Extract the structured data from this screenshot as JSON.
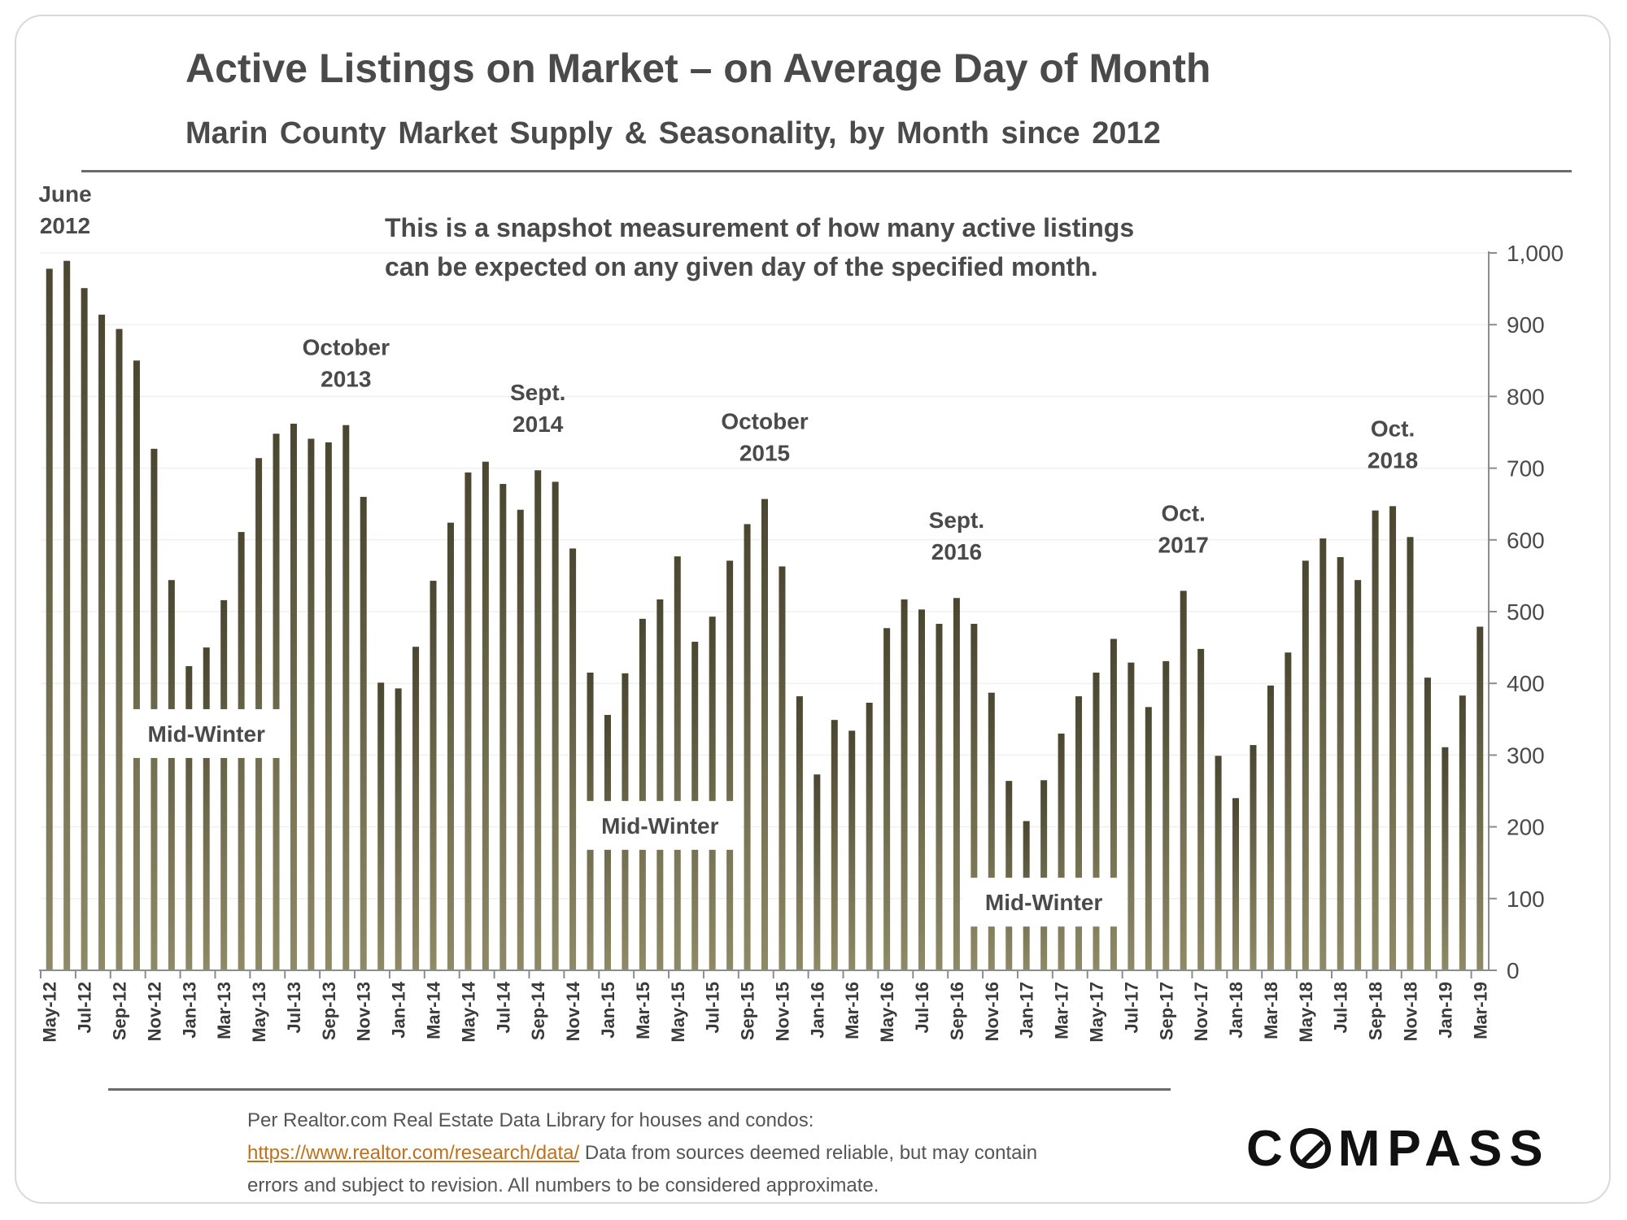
{
  "title": "Active Listings on Market – on Average Day of Month",
  "subtitle": "Marin County Market Supply & Seasonality, by Month since 2012",
  "note": {
    "line1": "This is a snapshot measurement of how many active listings",
    "line2": "can be expected on any given day of the specified month."
  },
  "source": {
    "line1": "Per Realtor.com Real Estate Data Library for houses and condos:",
    "link": "https://www.realtor.com/research/data/",
    "line2_rest": " Data from sources deemed reliable, but may contain",
    "line3": "errors and subject to revision. All numbers to be considered approximate."
  },
  "logo": {
    "text": "COMPASS"
  },
  "colors": {
    "bar_top": "#4a4630",
    "bar_bottom": "#8e8a66",
    "text": "#4a4a4a",
    "link": "#c0701a"
  },
  "chart_data": {
    "type": "bar",
    "title": "Active Listings on Market – on Average Day of Month",
    "subtitle": "Marin County Market Supply & Seasonality, by Month since 2012",
    "y_axis_position": "right",
    "ylim": [
      0,
      1000
    ],
    "yticks": [
      0,
      100,
      200,
      300,
      400,
      500,
      600,
      700,
      800,
      900,
      1000
    ],
    "ytick_labels": [
      "0",
      "100",
      "200",
      "300",
      "400",
      "500",
      "600",
      "700",
      "800",
      "900",
      "1,000"
    ],
    "grid": true,
    "categories": [
      "May-12",
      "Jun-12",
      "Jul-12",
      "Aug-12",
      "Sep-12",
      "Oct-12",
      "Nov-12",
      "Dec-12",
      "Jan-13",
      "Feb-13",
      "Mar-13",
      "Apr-13",
      "May-13",
      "Jun-13",
      "Jul-13",
      "Aug-13",
      "Sep-13",
      "Oct-13",
      "Nov-13",
      "Dec-13",
      "Jan-14",
      "Feb-14",
      "Mar-14",
      "Apr-14",
      "May-14",
      "Jun-14",
      "Jul-14",
      "Aug-14",
      "Sep-14",
      "Oct-14",
      "Nov-14",
      "Dec-14",
      "Jan-15",
      "Feb-15",
      "Mar-15",
      "Apr-15",
      "May-15",
      "Jun-15",
      "Jul-15",
      "Aug-15",
      "Sep-15",
      "Oct-15",
      "Nov-15",
      "Dec-15",
      "Jan-16",
      "Feb-16",
      "Mar-16",
      "Apr-16",
      "May-16",
      "Jun-16",
      "Jul-16",
      "Aug-16",
      "Sep-16",
      "Oct-16",
      "Nov-16",
      "Dec-16",
      "Jan-17",
      "Feb-17",
      "Mar-17",
      "Apr-17",
      "May-17",
      "Jun-17",
      "Jul-17",
      "Aug-17",
      "Sep-17",
      "Oct-17",
      "Nov-17",
      "Dec-17",
      "Jan-18",
      "Feb-18",
      "Mar-18",
      "Apr-18",
      "May-18",
      "Jun-18",
      "Jul-18",
      "Aug-18",
      "Sep-18",
      "Oct-18",
      "Nov-18",
      "Dec-18",
      "Jan-19",
      "Feb-19",
      "Mar-19"
    ],
    "x_tick_labels": [
      "May-12",
      "Jul-12",
      "Sep-12",
      "Nov-12",
      "Jan-13",
      "Mar-13",
      "May-13",
      "Jul-13",
      "Sep-13",
      "Nov-13",
      "Jan-14",
      "Mar-14",
      "May-14",
      "Jul-14",
      "Sep-14",
      "Nov-14",
      "Jan-15",
      "Mar-15",
      "May-15",
      "Jul-15",
      "Sep-15",
      "Nov-15",
      "Jan-16",
      "Mar-16",
      "May-16",
      "Jul-16",
      "Sep-16",
      "Nov-16",
      "Jan-17",
      "Mar-17",
      "May-17",
      "Jul-17",
      "Sep-17",
      "Nov-17",
      "Jan-18",
      "Mar-18",
      "May-18",
      "Jul-18",
      "Sep-18",
      "Nov-18",
      "Jan-19",
      "Mar-19"
    ],
    "values": [
      978,
      989,
      951,
      914,
      894,
      850,
      727,
      544,
      424,
      450,
      516,
      611,
      714,
      748,
      762,
      741,
      736,
      760,
      660,
      401,
      393,
      451,
      543,
      624,
      694,
      709,
      678,
      642,
      697,
      681,
      588,
      415,
      356,
      414,
      490,
      517,
      577,
      458,
      493,
      571,
      622,
      657,
      563,
      382,
      273,
      349,
      334,
      373,
      477,
      517,
      503,
      483,
      519,
      483,
      387,
      264,
      208,
      265,
      330,
      382,
      415,
      462,
      429,
      367,
      431,
      529,
      448,
      299,
      240,
      314,
      397,
      443,
      571,
      602,
      576,
      544,
      641,
      647,
      604,
      408,
      311,
      383,
      479
    ],
    "annotations": [
      {
        "category": "Jun-12",
        "line1": "June",
        "line2": "2012"
      },
      {
        "category": "Oct-13",
        "line1": "October",
        "line2": "2013"
      },
      {
        "category": "Sep-14",
        "line1": "Sept.",
        "line2": "2014"
      },
      {
        "category": "Oct-15",
        "line1": "October",
        "line2": "2015"
      },
      {
        "category": "Sep-16",
        "line1": "Sept.",
        "line2": "2016"
      },
      {
        "category": "Oct-17",
        "line1": "Oct.",
        "line2": "2017"
      },
      {
        "category": "Oct-18",
        "line1": "Oct.",
        "line2": "2018"
      }
    ],
    "callouts": [
      {
        "category": "Feb-13",
        "text": "Mid-Winter",
        "value": 330
      },
      {
        "category": "Apr-15",
        "text": "Mid-Winter",
        "value": 202
      },
      {
        "category": "Feb-17",
        "text": "Mid-Winter",
        "value": 95
      }
    ]
  }
}
